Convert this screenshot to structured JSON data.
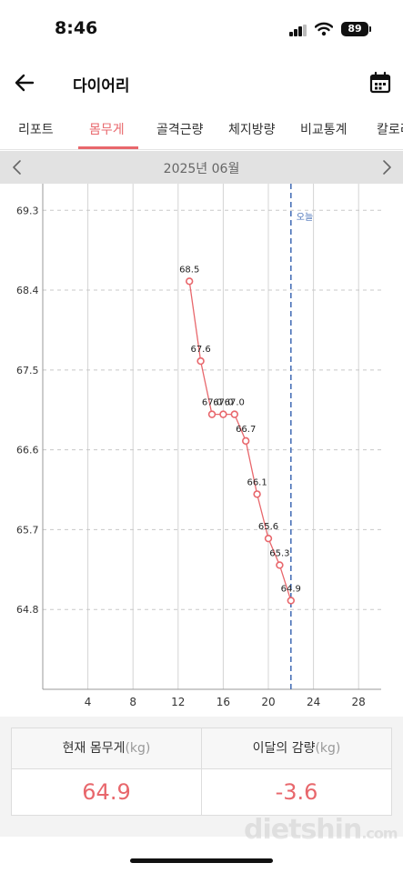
{
  "status_bar": {
    "time": "8:46",
    "battery": "89"
  },
  "header": {
    "title": "다이어리"
  },
  "tabs": [
    {
      "label": "리포트",
      "active": false
    },
    {
      "label": "몸무게",
      "active": true
    },
    {
      "label": "골격근량",
      "active": false
    },
    {
      "label": "체지방량",
      "active": false
    },
    {
      "label": "비교통계",
      "active": false
    },
    {
      "label": "칼로리",
      "active": false
    }
  ],
  "month_nav": {
    "label": "2025년 06월"
  },
  "chart_data": {
    "type": "line",
    "x_ticks": [
      4,
      8,
      12,
      16,
      20,
      24,
      28
    ],
    "y_ticks": [
      "69.3",
      "68.4",
      "67.5",
      "66.6",
      "65.7",
      "64.8"
    ],
    "xlim": [
      0,
      30
    ],
    "ylim": [
      63.9,
      69.6
    ],
    "today_x": 22,
    "today_label": "오늘",
    "series": [
      {
        "color": "#e8676c",
        "points": [
          {
            "x": 13,
            "y": 68.5,
            "label": "68.5"
          },
          {
            "x": 14,
            "y": 67.6,
            "label": "67.6"
          },
          {
            "x": 15,
            "y": 67.0,
            "label": "67.0"
          },
          {
            "x": 16,
            "y": 67.0,
            "label": "67.0"
          },
          {
            "x": 17,
            "y": 67.0,
            "label": "67.0"
          },
          {
            "x": 18,
            "y": 66.7,
            "label": "66.7"
          },
          {
            "x": 19,
            "y": 66.1,
            "label": "66.1"
          },
          {
            "x": 20,
            "y": 65.6,
            "label": "65.6"
          },
          {
            "x": 21,
            "y": 65.3,
            "label": "65.3"
          },
          {
            "x": 22,
            "y": 64.9,
            "label": "64.9"
          }
        ]
      }
    ]
  },
  "summary": {
    "current_label": "현재 몸무게",
    "current_unit": "(kg)",
    "current_value": "64.9",
    "change_label": "이달의 감량",
    "change_unit": "(kg)",
    "change_value": "-3.6"
  },
  "watermark": {
    "text": "dietshin",
    "suffix": ".com"
  }
}
